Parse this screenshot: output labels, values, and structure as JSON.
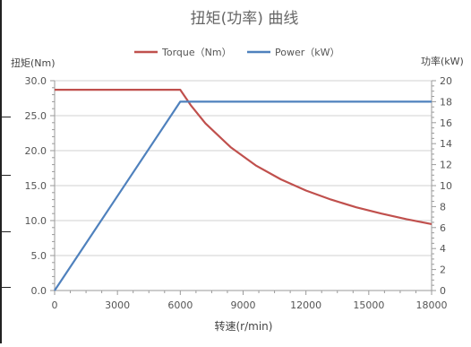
{
  "chart_data": {
    "type": "line",
    "title": "扭矩(功率) 曲线",
    "xlabel": "转速(r/min)",
    "ylabel_left": "扭矩(Nm)",
    "ylabel_right": "功率(kW)",
    "x_ticks": [
      0,
      3000,
      6000,
      9000,
      12000,
      15000,
      18000
    ],
    "y_left_ticks": [
      "0.0",
      "5.0",
      "10.0",
      "15.0",
      "20.0",
      "25.0",
      "30.0"
    ],
    "y_right_ticks": [
      "0",
      "2",
      "4",
      "6",
      "8",
      "10",
      "12",
      "14",
      "16",
      "18",
      "20"
    ],
    "xlim": [
      0,
      18000
    ],
    "ylim_left": [
      0,
      30
    ],
    "ylim_right": [
      0,
      20
    ],
    "grid": "horizontal",
    "legend_position": "top",
    "series": [
      {
        "name": "Torque（Nm）",
        "axis": "left",
        "color": "#c0504d",
        "x": [
          0,
          6000,
          6500,
          7200,
          8400,
          9600,
          10800,
          12000,
          13200,
          14400,
          15600,
          16800,
          18000
        ],
        "y": [
          28.7,
          28.7,
          26.5,
          23.9,
          20.5,
          17.9,
          15.9,
          14.3,
          13.0,
          11.9,
          11.0,
          10.2,
          9.5
        ]
      },
      {
        "name": "Power（kW）",
        "axis": "right",
        "color": "#4f81bd",
        "x": [
          0,
          6000,
          18000
        ],
        "y": [
          0,
          18,
          18
        ]
      }
    ]
  }
}
